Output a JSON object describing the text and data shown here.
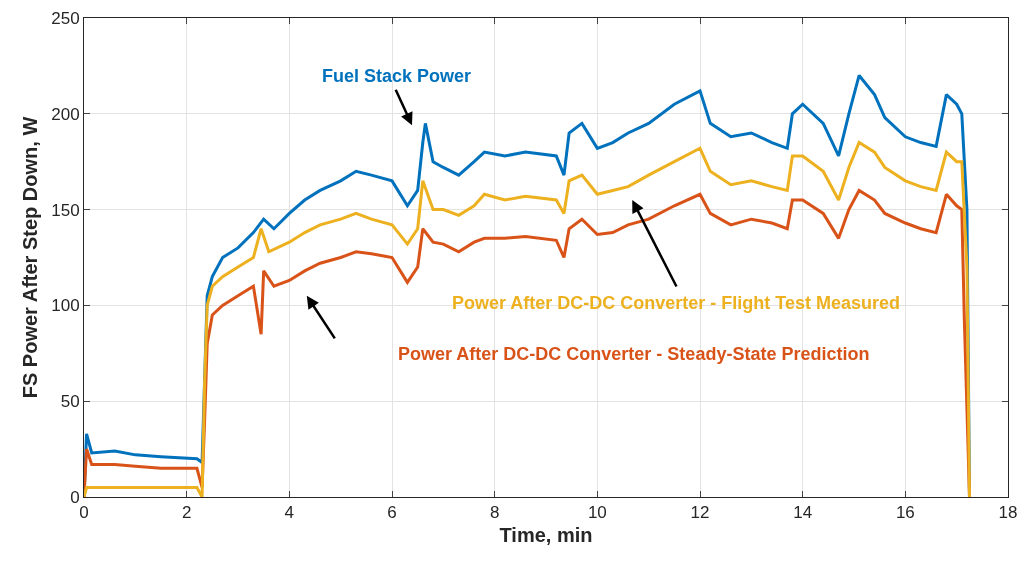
{
  "chart_data": {
    "type": "line",
    "xlabel": "Time, min",
    "ylabel": "FS Power After Step Down, W",
    "xlim": [
      0,
      18
    ],
    "xticks": [
      0,
      2,
      4,
      6,
      8,
      10,
      12,
      14,
      16,
      18
    ],
    "ylim": [
      0,
      250
    ],
    "yticks": [
      0,
      50,
      100,
      150,
      200,
      250
    ],
    "grid": true,
    "legend": false,
    "marker": "none",
    "line_style": "solid",
    "series": [
      {
        "name": "Fuel Stack Power",
        "color": "#0072bd",
        "x": [
          0,
          0.05,
          0.15,
          0.6,
          1,
          1.5,
          2.2,
          2.3,
          2.4,
          2.5,
          2.7,
          3,
          3.3,
          3.5,
          3.7,
          4,
          4.3,
          4.6,
          5,
          5.3,
          5.6,
          6,
          6.3,
          6.5,
          6.6,
          6.65,
          6.8,
          7,
          7.3,
          7.6,
          7.8,
          8.2,
          8.6,
          9.2,
          9.35,
          9.45,
          9.7,
          10,
          10.3,
          10.6,
          11,
          11.5,
          12,
          12.2,
          12.6,
          13,
          13.4,
          13.7,
          13.8,
          14,
          14.4,
          14.7,
          14.9,
          15.1,
          15.4,
          15.6,
          16,
          16.3,
          16.6,
          16.8,
          17,
          17.1,
          17.2,
          17.25
        ],
        "values": [
          0,
          33,
          23,
          24,
          22,
          21,
          20,
          18,
          105,
          115,
          125,
          130,
          138,
          145,
          140,
          148,
          155,
          160,
          165,
          170,
          168,
          165,
          152,
          160,
          185,
          195,
          175,
          172,
          168,
          175,
          180,
          178,
          180,
          178,
          168,
          190,
          195,
          182,
          185,
          190,
          195,
          205,
          212,
          195,
          188,
          190,
          185,
          182,
          200,
          205,
          195,
          178,
          200,
          220,
          210,
          198,
          188,
          185,
          183,
          210,
          205,
          200,
          150,
          0
        ]
      },
      {
        "name": "Power After DC-DC Converter - Steady-State Prediction",
        "color": "#d95319",
        "x": [
          0,
          0.05,
          0.15,
          0.6,
          1,
          1.5,
          2.2,
          2.3,
          2.35,
          2.4,
          2.5,
          2.7,
          3,
          3.3,
          3.45,
          3.5,
          3.7,
          4,
          4.3,
          4.6,
          5,
          5.3,
          5.6,
          6,
          6.3,
          6.5,
          6.6,
          6.8,
          7,
          7.3,
          7.6,
          7.8,
          8.2,
          8.6,
          9.2,
          9.35,
          9.45,
          9.7,
          10,
          10.3,
          10.6,
          11,
          11.5,
          12,
          12.2,
          12.6,
          13,
          13.4,
          13.7,
          13.8,
          14,
          14.4,
          14.7,
          14.9,
          15.1,
          15.4,
          15.6,
          16,
          16.3,
          16.6,
          16.8,
          17,
          17.1,
          17.15,
          17.25
        ],
        "values": [
          0,
          25,
          17,
          17,
          16,
          15,
          15,
          5,
          40,
          80,
          95,
          100,
          105,
          110,
          85,
          118,
          110,
          113,
          118,
          122,
          125,
          128,
          127,
          125,
          112,
          120,
          140,
          133,
          132,
          128,
          133,
          135,
          135,
          136,
          134,
          125,
          140,
          145,
          137,
          138,
          142,
          145,
          152,
          158,
          148,
          142,
          145,
          143,
          140,
          155,
          155,
          148,
          135,
          150,
          160,
          155,
          148,
          143,
          140,
          138,
          158,
          152,
          150,
          92,
          0
        ]
      },
      {
        "name": "Power After DC-DC Converter - Flight Test Measured",
        "color": "#edb120",
        "x": [
          0,
          0.05,
          0.5,
          1,
          1.5,
          2.2,
          2.3,
          2.35,
          2.4,
          2.5,
          2.7,
          3,
          3.3,
          3.45,
          3.6,
          4,
          4.3,
          4.6,
          5,
          5.3,
          5.6,
          6,
          6.3,
          6.5,
          6.6,
          6.8,
          7,
          7.3,
          7.6,
          7.8,
          8.2,
          8.6,
          9.2,
          9.35,
          9.45,
          9.7,
          10,
          10.3,
          10.6,
          11,
          11.5,
          12,
          12.2,
          12.6,
          13,
          13.4,
          13.7,
          13.8,
          14,
          14.4,
          14.7,
          14.9,
          15.1,
          15.4,
          15.6,
          16,
          16.3,
          16.6,
          16.8,
          17,
          17.1,
          17.2,
          17.25
        ],
        "values": [
          0,
          5,
          5,
          5,
          5,
          5,
          0,
          60,
          100,
          110,
          115,
          120,
          125,
          140,
          128,
          133,
          138,
          142,
          145,
          148,
          145,
          142,
          132,
          140,
          165,
          150,
          150,
          147,
          152,
          158,
          155,
          157,
          155,
          148,
          165,
          168,
          158,
          160,
          162,
          168,
          175,
          182,
          170,
          163,
          165,
          162,
          160,
          178,
          178,
          170,
          155,
          172,
          185,
          180,
          172,
          165,
          162,
          160,
          180,
          175,
          175,
          120,
          0
        ]
      }
    ]
  }
}
